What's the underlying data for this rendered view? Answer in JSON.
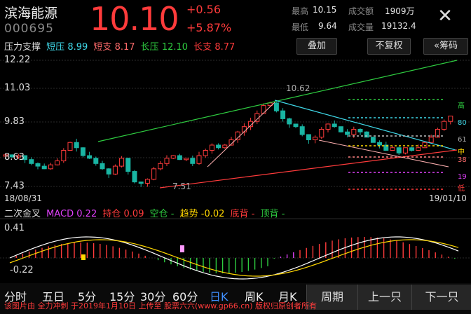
{
  "header": {
    "name": "滨海能源",
    "code": "000695",
    "price": "10.10",
    "change": "+0.56",
    "change_pct": "+5.87%",
    "stats": {
      "high_label": "最高",
      "high": "10.15",
      "low_label": "最低",
      "low": "9.64",
      "amount_label": "成交额",
      "amount": "1909万",
      "volume_label": "成交量",
      "volume": "19132.4"
    }
  },
  "support": {
    "title": "压力支撑",
    "short_press_label": "短压",
    "short_press": "8.99",
    "short_sup_label": "短支",
    "short_sup": "8.17",
    "long_press_label": "长压",
    "long_press": "12.10",
    "long_sup_label": "长支",
    "long_sup": "8.77"
  },
  "toolbar": {
    "overlay": "叠加",
    "no_adjust": "不复权",
    "chips": "«筹码"
  },
  "price_axis": {
    "top": "12.22",
    "l2": "11.03",
    "l3": "9.83",
    "l4": "8.63",
    "bottom": "7.43",
    "high_mark": "10.62",
    "low_mark": "7.51"
  },
  "dates": {
    "start": "18/08/31",
    "end": "19/01/10"
  },
  "chip_labels": {
    "gao": "高",
    "eighty": "80",
    "sixty": "61",
    "mid": "中",
    "thirty": "38",
    "nineteen": "19",
    "di": "低"
  },
  "indicator": {
    "signal": "二次金叉",
    "macd_label": "MACD",
    "macd": "0.22",
    "pos_label": "持仓",
    "pos": "0.09",
    "empty_label": "空仓",
    "empty": "-",
    "trend_label": "趋势",
    "trend": "-0.02",
    "bottom_div_label": "底背",
    "bottom_div": "-",
    "top_div_label": "顶背",
    "top_div": "-",
    "ymax": "0.41",
    "ymin": "-0.22"
  },
  "periods": [
    "分时",
    "五日",
    "5分",
    "15分",
    "30分",
    "60分",
    "日K",
    "周K",
    "月K"
  ],
  "active_period": "日K",
  "nav": {
    "cycle": "周期",
    "prev": "上一只",
    "next": "下一只"
  },
  "watermark": "该图片由 全力冲刺 于2019年1月10日 上传至 股票六六(www.gp66.cn) 版权归原创者所有",
  "colors": {
    "up": "#ff3b3b",
    "down": "#19b5a3",
    "ma_green": "#2ecc40",
    "ma_cyan": "#3fd8e8",
    "magenta": "#e040fb",
    "yellow": "#ffd700"
  }
}
